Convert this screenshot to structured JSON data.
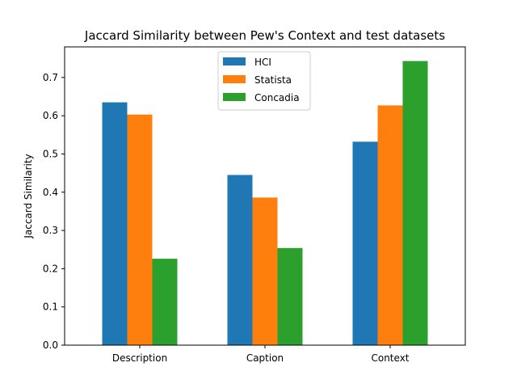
{
  "chart_data": {
    "type": "bar",
    "title": "Jaccard Similarity between Pew's Context and test datasets",
    "xlabel": "",
    "ylabel": "Jaccard Similarity",
    "categories": [
      "Description",
      "Caption",
      "Context"
    ],
    "series": [
      {
        "name": "HCI",
        "color": "#1f77b4",
        "values": [
          0.635,
          0.445,
          0.532
        ]
      },
      {
        "name": "Statista",
        "color": "#ff7f0e",
        "values": [
          0.603,
          0.386,
          0.627
        ]
      },
      {
        "name": "Concadia",
        "color": "#2ca02c",
        "values": [
          0.226,
          0.254,
          0.743
        ]
      }
    ],
    "ylim": [
      0,
      0.78
    ],
    "yticks": [
      0.0,
      0.1,
      0.2,
      0.3,
      0.4,
      0.5,
      0.6,
      0.7
    ],
    "ytick_labels": [
      "0.0",
      "0.1",
      "0.2",
      "0.3",
      "0.4",
      "0.5",
      "0.6",
      "0.7"
    ],
    "legend_position": "top-center",
    "grid": false
  }
}
